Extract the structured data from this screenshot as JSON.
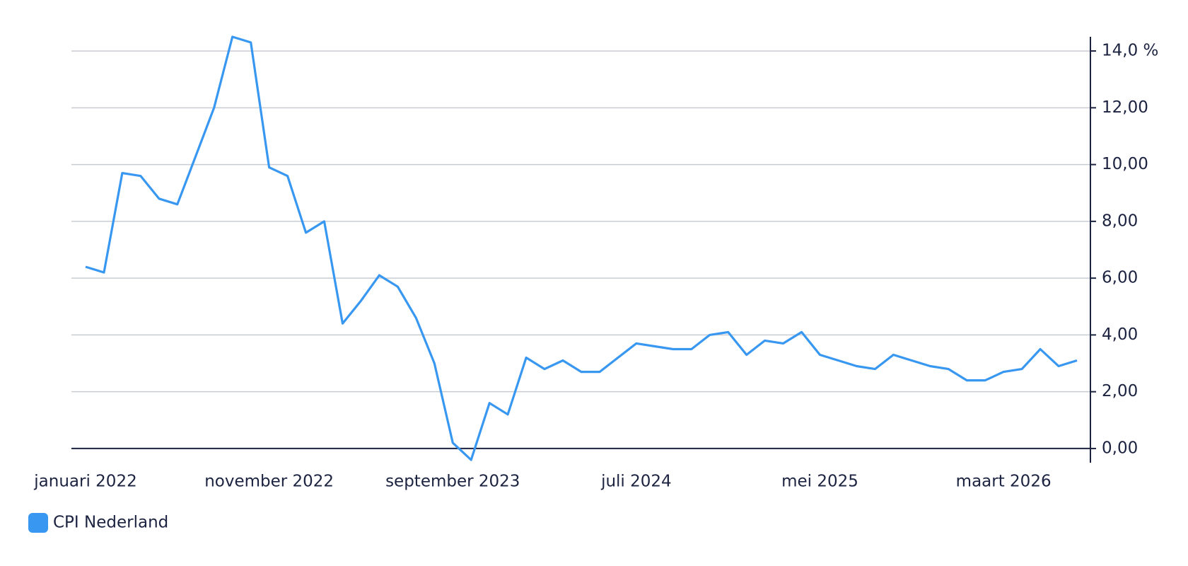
{
  "chart_data": {
    "type": "line",
    "categories": [
      "januari 2022",
      null,
      null,
      null,
      null,
      null,
      null,
      null,
      null,
      null,
      "november 2022",
      null,
      null,
      null,
      null,
      null,
      null,
      null,
      null,
      null,
      "september 2023",
      null,
      null,
      null,
      null,
      null,
      null,
      null,
      null,
      null,
      "juli 2024",
      null,
      null,
      null,
      null,
      null,
      null,
      null,
      null,
      null,
      "mei 2025",
      null,
      null,
      null,
      null,
      null,
      null,
      null,
      null,
      null,
      "maart 2026",
      null,
      null,
      null,
      null
    ],
    "series": [
      {
        "name": "CPI Nederland",
        "color": "#3897f0",
        "values": [
          6.4,
          6.2,
          9.7,
          9.6,
          8.8,
          8.6,
          10.3,
          12.0,
          14.5,
          14.3,
          9.9,
          9.6,
          7.6,
          8.0,
          4.4,
          5.2,
          6.1,
          5.7,
          4.6,
          3.0,
          0.2,
          -0.4,
          1.6,
          1.2,
          3.2,
          2.8,
          3.1,
          2.7,
          2.7,
          3.2,
          3.7,
          3.6,
          3.5,
          3.5,
          4.0,
          4.1,
          3.3,
          3.8,
          3.7,
          4.1,
          3.3,
          3.1,
          2.9,
          2.8,
          3.3,
          3.1,
          2.9,
          2.8,
          2.4,
          2.4,
          2.7,
          2.8,
          3.5,
          2.9,
          3.1
        ]
      }
    ],
    "ylim": [
      -0.5,
      14.5
    ],
    "yticks": [
      {
        "value": 0,
        "label": "0,00"
      },
      {
        "value": 2,
        "label": "2,00"
      },
      {
        "value": 4,
        "label": "4,00"
      },
      {
        "value": 6,
        "label": "6,00"
      },
      {
        "value": 8,
        "label": "8,00"
      },
      {
        "value": 10,
        "label": "10,00"
      },
      {
        "value": 12,
        "label": "12,00"
      },
      {
        "value": 14,
        "label": "14,0 %"
      }
    ],
    "grid": true,
    "legend": "bottom-left"
  }
}
